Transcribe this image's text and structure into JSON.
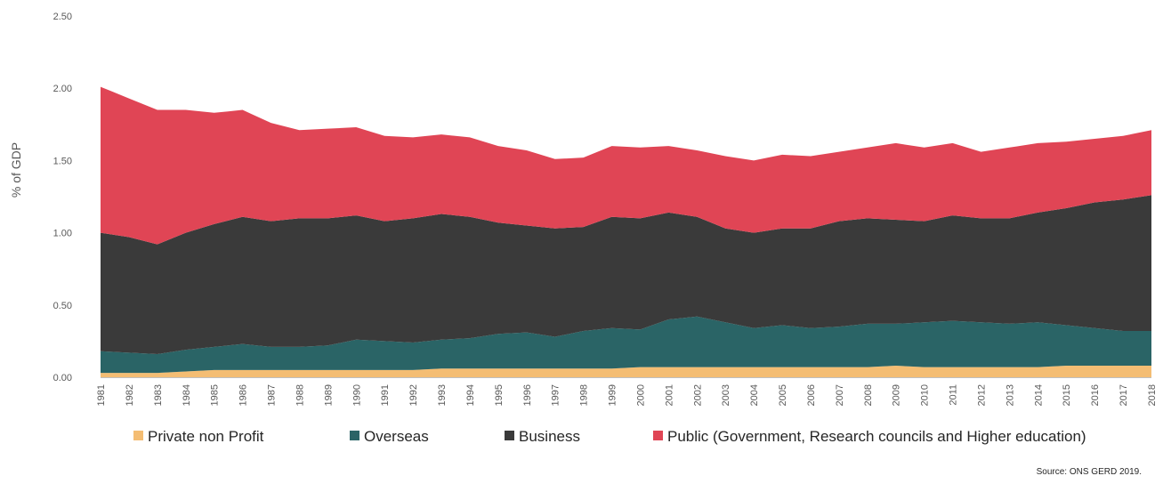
{
  "chart_data": {
    "type": "area",
    "stacked": true,
    "ylabel": "% of GDP",
    "ylim": [
      0,
      2.5
    ],
    "yticks": [
      "0.00",
      "0.50",
      "1.00",
      "1.50",
      "2.00",
      "2.50"
    ],
    "grid": false,
    "legend_position": "bottom",
    "categories": [
      "1981",
      "1982",
      "1983",
      "1984",
      "1985",
      "1986",
      "1987",
      "1988",
      "1989",
      "1990",
      "1991",
      "1992",
      "1993",
      "1994",
      "1995",
      "1996",
      "1997",
      "1998",
      "1999",
      "2000",
      "2001",
      "2002",
      "2003",
      "2004",
      "2005",
      "2006",
      "2007",
      "2008",
      "2009",
      "2010",
      "2011",
      "2012",
      "2013",
      "2014",
      "2015",
      "2016",
      "2017",
      "2018"
    ],
    "series": [
      {
        "name": "Private non Profit",
        "color": "#F4BD73",
        "values": [
          0.03,
          0.03,
          0.03,
          0.04,
          0.05,
          0.05,
          0.05,
          0.05,
          0.05,
          0.05,
          0.05,
          0.05,
          0.06,
          0.06,
          0.06,
          0.06,
          0.06,
          0.06,
          0.06,
          0.07,
          0.07,
          0.07,
          0.07,
          0.07,
          0.07,
          0.07,
          0.07,
          0.07,
          0.08,
          0.07,
          0.07,
          0.07,
          0.07,
          0.07,
          0.08,
          0.08,
          0.08,
          0.08
        ]
      },
      {
        "name": "Overseas",
        "color": "#2A6466",
        "values": [
          0.15,
          0.14,
          0.13,
          0.15,
          0.16,
          0.18,
          0.16,
          0.16,
          0.17,
          0.21,
          0.2,
          0.19,
          0.2,
          0.21,
          0.24,
          0.25,
          0.22,
          0.26,
          0.28,
          0.26,
          0.33,
          0.35,
          0.31,
          0.27,
          0.29,
          0.27,
          0.28,
          0.3,
          0.29,
          0.31,
          0.32,
          0.31,
          0.3,
          0.31,
          0.28,
          0.26,
          0.24,
          0.24
        ]
      },
      {
        "name": "Business",
        "color": "#3A3A3A",
        "values": [
          0.82,
          0.8,
          0.76,
          0.81,
          0.85,
          0.88,
          0.87,
          0.89,
          0.88,
          0.86,
          0.83,
          0.86,
          0.87,
          0.84,
          0.77,
          0.74,
          0.75,
          0.72,
          0.77,
          0.77,
          0.74,
          0.69,
          0.65,
          0.66,
          0.67,
          0.69,
          0.73,
          0.73,
          0.72,
          0.7,
          0.73,
          0.72,
          0.73,
          0.76,
          0.81,
          0.87,
          0.91,
          0.94
        ]
      },
      {
        "name": "Public (Government, Research councils and Higher education)",
        "color": "#E04555",
        "values": [
          1.01,
          0.96,
          0.93,
          0.85,
          0.77,
          0.74,
          0.68,
          0.61,
          0.62,
          0.61,
          0.59,
          0.56,
          0.55,
          0.55,
          0.53,
          0.52,
          0.48,
          0.48,
          0.49,
          0.49,
          0.46,
          0.46,
          0.5,
          0.5,
          0.51,
          0.5,
          0.48,
          0.49,
          0.53,
          0.51,
          0.5,
          0.46,
          0.49,
          0.48,
          0.46,
          0.44,
          0.44,
          0.45
        ]
      }
    ],
    "source": "Source: ONS GERD 2019."
  }
}
